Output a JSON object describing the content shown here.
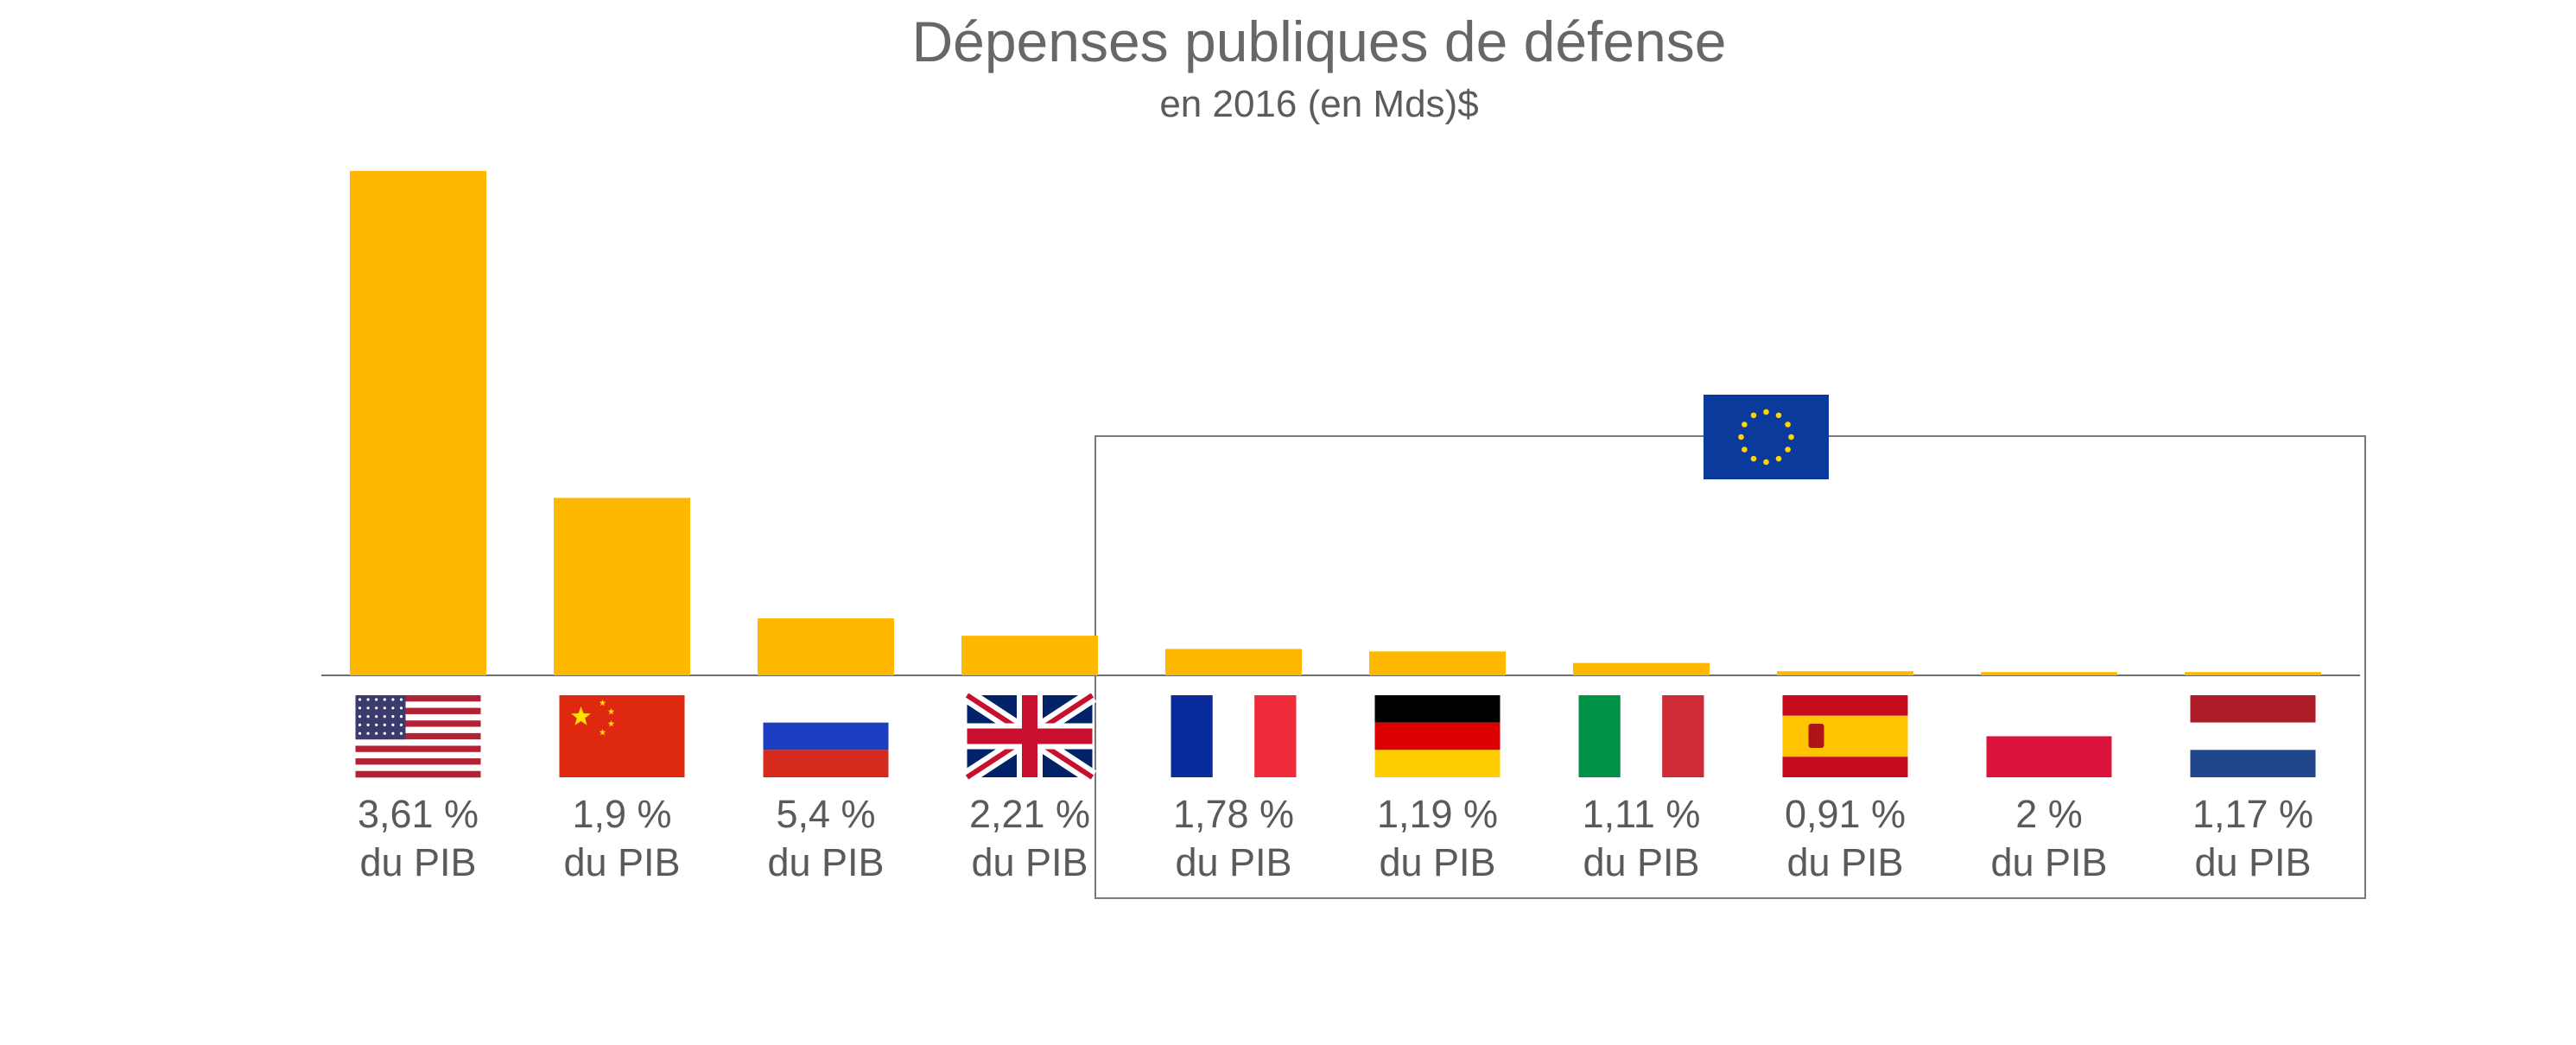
{
  "title": "Dépenses publiques de défense",
  "subtitle": "en 2016 (en Mds)$",
  "colors": {
    "bar": "#FFB800",
    "text": "#5a5a5a",
    "frame": "#7a7a7a",
    "eu_blue": "#0A3A9C",
    "eu_star": "#FFD400"
  },
  "chart_data": {
    "type": "bar",
    "title": "Dépenses publiques de défense",
    "subtitle": "en 2016 (en Mds)$",
    "categories": [
      "États-Unis",
      "Chine",
      "Russie",
      "Royaume-Uni",
      "France",
      "Allemagne",
      "Italie",
      "Espagne",
      "Pologne",
      "Pays-Bas"
    ],
    "values": [
      611,
      215,
      69,
      48,
      32,
      29,
      15,
      5,
      4,
      4
    ],
    "gdp_labels": [
      {
        "pct": "3,61 %",
        "unit": "du PIB"
      },
      {
        "pct": "1,9 %",
        "unit": "du PIB"
      },
      {
        "pct": "5,4 %",
        "unit": "du PIB"
      },
      {
        "pct": "2,21 %",
        "unit": "du PIB"
      },
      {
        "pct": "1,78 %",
        "unit": "du PIB"
      },
      {
        "pct": "1,19 %",
        "unit": "du PIB"
      },
      {
        "pct": "1,11 %",
        "unit": "du PIB"
      },
      {
        "pct": "0,91 %",
        "unit": "du PIB"
      },
      {
        "pct": "2 %",
        "unit": "du PIB"
      },
      {
        "pct": "1,17 %",
        "unit": "du PIB"
      }
    ],
    "flags": [
      "us-flag-icon",
      "china-flag-icon",
      "russia-flag-icon",
      "uk-flag-icon",
      "france-flag-icon",
      "germany-flag-icon",
      "italy-flag-icon",
      "spain-flag-icon",
      "poland-flag-icon",
      "netherlands-flag-icon"
    ],
    "eu_group": [
      "France",
      "Allemagne",
      "Italie",
      "Espagne",
      "Pologne",
      "Pays-Bas"
    ],
    "eu_icon": "eu-flag-icon",
    "ylim": [
      0,
      611
    ],
    "grid": false,
    "legend": "none"
  }
}
